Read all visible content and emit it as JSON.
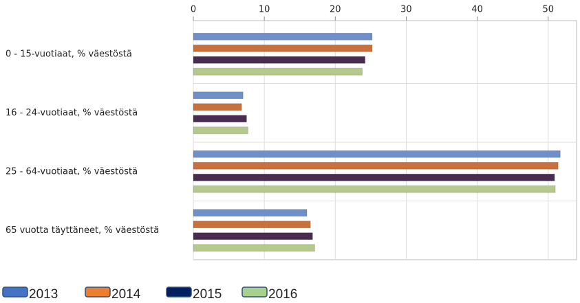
{
  "chart_data": {
    "type": "hbar",
    "categories": [
      "0 - 15-vuotiaat, % väestöstä",
      "16 - 24-vuotiaat, % väestöstä",
      "25 - 64-vuotiaat, % väestöstä",
      "65 vuotta täyttäneet, % väestöstä"
    ],
    "series": [
      {
        "name": "2013",
        "color": "#6f8fc9",
        "legend_color": "#4472c4",
        "values": [
          25.2,
          7.0,
          51.7,
          16.0
        ]
      },
      {
        "name": "2014",
        "color": "#c8713c",
        "legend_color": "#ed7d31",
        "values": [
          25.2,
          6.8,
          51.4,
          16.5
        ]
      },
      {
        "name": "2015",
        "color": "#4a2c50",
        "legend_color": "#002060",
        "values": [
          24.2,
          7.5,
          50.9,
          16.8
        ]
      },
      {
        "name": "2016",
        "color": "#b6c98c",
        "legend_color": "#a9d18e",
        "values": [
          23.8,
          7.7,
          51.0,
          17.1
        ]
      }
    ],
    "xlim": [
      0,
      54
    ],
    "xticks": [
      0,
      10,
      20,
      30,
      40,
      50
    ],
    "grid": true
  }
}
